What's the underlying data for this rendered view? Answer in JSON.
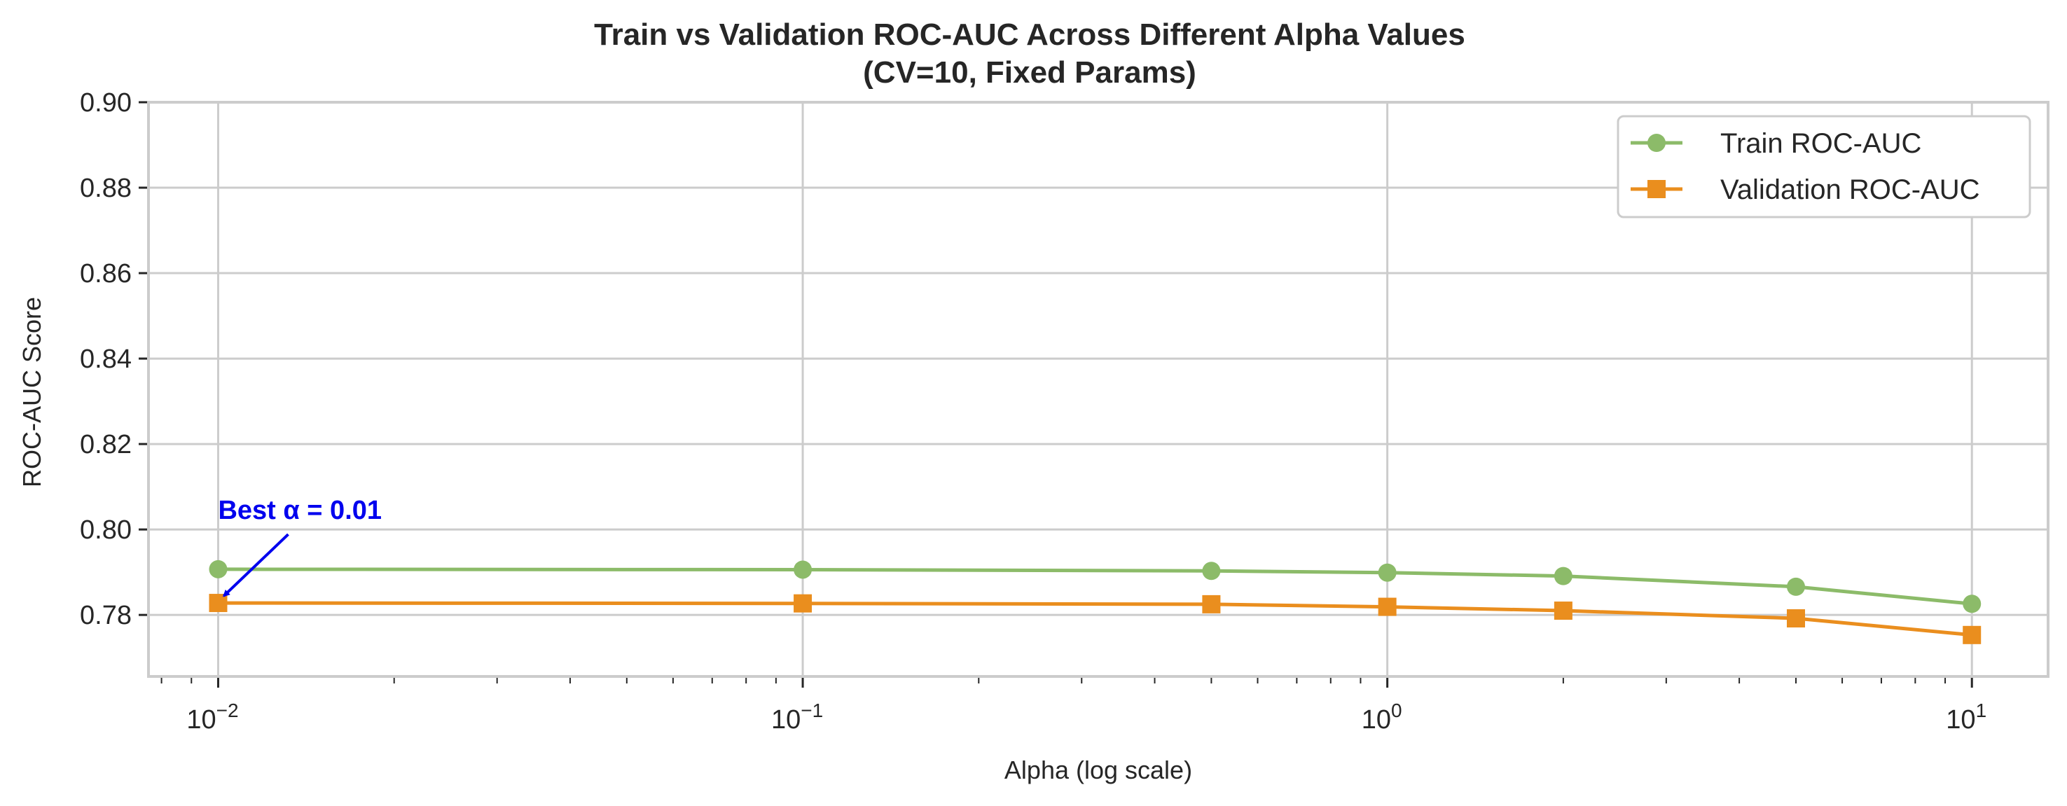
{
  "chart_data": {
    "type": "line",
    "title": "Train vs Validation ROC-AUC Across Different Alpha Values",
    "subtitle": "(CV=10, Fixed Params)",
    "xlabel": "Alpha (log scale)",
    "ylabel": "ROC-AUC Score",
    "xscale": "log",
    "xlim": [
      0.0076,
      13.5
    ],
    "ylim": [
      0.7656,
      0.9
    ],
    "x_ticks": [
      {
        "value": 0.01,
        "base": "10",
        "exp": "−2"
      },
      {
        "value": 0.1,
        "base": "10",
        "exp": "−1"
      },
      {
        "value": 1,
        "base": "10",
        "exp": "0"
      },
      {
        "value": 10,
        "base": "10",
        "exp": "1"
      }
    ],
    "y_ticks": [
      0.78,
      0.8,
      0.82,
      0.84,
      0.86,
      0.88,
      0.9
    ],
    "y_tick_labels": [
      "0.78",
      "0.80",
      "0.82",
      "0.84",
      "0.86",
      "0.88",
      "0.90"
    ],
    "grid": true,
    "legend_position": "top-right",
    "x": [
      0.01,
      0.1,
      0.5,
      1,
      2,
      5,
      10
    ],
    "series": [
      {
        "name": "Train ROC-AUC",
        "marker": "circle",
        "color": "#8cbb69",
        "values": [
          0.7907,
          0.7906,
          0.7903,
          0.7899,
          0.7891,
          0.7866,
          0.7826
        ]
      },
      {
        "name": "Validation ROC-AUC",
        "marker": "square",
        "color": "#ea8e1e",
        "values": [
          0.7828,
          0.7827,
          0.7825,
          0.7819,
          0.781,
          0.7792,
          0.7753
        ]
      }
    ],
    "annotations": [
      {
        "text": "Best α = 0.01",
        "x": 0.01,
        "y": 0.7828,
        "color": "#0000ee"
      }
    ]
  }
}
